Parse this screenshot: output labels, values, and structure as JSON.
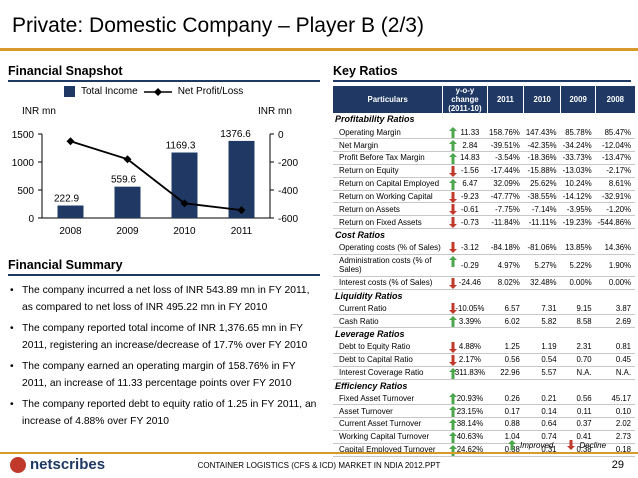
{
  "title": "Private: Domestic Company – Player B (2/3)",
  "financial_snapshot": {
    "heading": "Financial Snapshot",
    "legend": {
      "bar_label": "Total Income",
      "line_label": "Net Profit/Loss"
    },
    "left_unit": "INR mn",
    "right_unit": "INR mn"
  },
  "chart_data": {
    "type": "bar",
    "categories": [
      "2008",
      "2009",
      "2010",
      "2011"
    ],
    "series": [
      {
        "name": "Total Income",
        "values": [
          222.9,
          559.6,
          1169.3,
          1376.6
        ],
        "axis": "left"
      },
      {
        "name": "Net Profit/Loss",
        "values": [
          -52,
          -180,
          -495.22,
          -543.89
        ],
        "axis": "right",
        "type": "line"
      }
    ],
    "left_ticks": [
      "1500",
      "1000",
      "500",
      "0"
    ],
    "right_ticks": [
      "0",
      "-200",
      "-400",
      "-600"
    ],
    "ylim_left": [
      0,
      1500
    ],
    "ylim_right": [
      -600,
      0
    ],
    "data_labels": [
      "222.9",
      "559.6",
      "1169.3",
      "1376.6"
    ]
  },
  "financial_summary": {
    "heading": "Financial Summary",
    "bullets": [
      "The company incurred a net loss of INR 543.89 mn in FY 2011, as compared to net loss of INR 495.22 mn in FY 2010",
      "The company reported total income of INR 1,376.65 mn in FY 2011, registering an increase/decrease of 17.7% over FY 2010",
      "The company earned an operating margin of 158.76% in FY 2011, an increase of 11.33 percentage points over FY 2010",
      "The company reported debt to equity ratio of 1.25 in FY 2011, an increase of 4.88% over FY 2010"
    ]
  },
  "key_ratios": {
    "heading": "Key Ratios",
    "columns": [
      "Particulars",
      "y-o-y change (2011-10)",
      "2011",
      "2010",
      "2009",
      "2008"
    ],
    "groups": [
      {
        "name": "Profitability Ratios",
        "rows": [
          {
            "label": "Operating Margin",
            "yoy": "11.33",
            "dir": "up",
            "v": [
              "158.76%",
              "147.43%",
              "85.78%",
              "85.47%"
            ]
          },
          {
            "label": "Net Margin",
            "yoy": "2.84",
            "dir": "up",
            "v": [
              "-39.51%",
              "-42.35%",
              "-34.24%",
              "-12.04%"
            ]
          },
          {
            "label": "Profit Before Tax Margin",
            "yoy": "14.83",
            "dir": "up",
            "v": [
              "-3.54%",
              "-18.36%",
              "-33.73%",
              "-13.47%"
            ]
          },
          {
            "label": "Return on Equity",
            "yoy": "-1.56",
            "dir": "down",
            "v": [
              "-17.44%",
              "-15.88%",
              "-13.03%",
              "-2.17%"
            ]
          },
          {
            "label": "Return on Capital Employed",
            "yoy": "6.47",
            "dir": "up",
            "v": [
              "32.09%",
              "25.62%",
              "10.24%",
              "8.61%"
            ]
          },
          {
            "label": "Return on Working Capital",
            "yoy": "-9.23",
            "dir": "down",
            "v": [
              "-47.77%",
              "-38.55%",
              "-14.12%",
              "-32.91%"
            ]
          },
          {
            "label": "Return on Assets",
            "yoy": "-0.61",
            "dir": "down",
            "v": [
              "-7.75%",
              "-7.14%",
              "-3.95%",
              "-1.20%"
            ]
          },
          {
            "label": "Return on Fixed Assets",
            "yoy": "-0.73",
            "dir": "down",
            "v": [
              "-11.84%",
              "-11.11%",
              "-19.23%",
              "-544.86%"
            ]
          }
        ]
      },
      {
        "name": "Cost Ratios",
        "rows": [
          {
            "label": "Operating costs (% of Sales)",
            "yoy": "-3.12",
            "dir": "down",
            "v": [
              "-84.18%",
              "-81.06%",
              "13.85%",
              "14.36%"
            ]
          },
          {
            "label": "Administration costs (% of Sales)",
            "yoy": "-0.29",
            "dir": "up",
            "v": [
              "4.97%",
              "5.27%",
              "5.22%",
              "1.90%"
            ],
            "tall": true
          },
          {
            "label": "Interest costs (% of Sales)",
            "yoy": "-24.46",
            "dir": "down",
            "v": [
              "8.02%",
              "32.48%",
              "0.00%",
              "0.00%"
            ]
          }
        ]
      },
      {
        "name": "Liquidity Ratios",
        "rows": [
          {
            "label": "Current Ratio",
            "yoy": "-10.05%",
            "dir": "down",
            "v": [
              "6.57",
              "7.31",
              "9.15",
              "3.87"
            ]
          },
          {
            "label": "Cash Ratio",
            "yoy": "3.39%",
            "dir": "up",
            "v": [
              "6.02",
              "5.82",
              "8.58",
              "2.69"
            ]
          }
        ]
      },
      {
        "name": "Leverage Ratios",
        "rows": [
          {
            "label": "Debt to Equity Ratio",
            "yoy": "4.88%",
            "dir": "down",
            "v": [
              "1.25",
              "1.19",
              "2.31",
              "0.81"
            ]
          },
          {
            "label": "Debt to Capital Ratio",
            "yoy": "2.17%",
            "dir": "down",
            "v": [
              "0.56",
              "0.54",
              "0.70",
              "0.45"
            ]
          },
          {
            "label": "Interest Coverage Ratio",
            "yoy": "311.83%",
            "dir": "up",
            "v": [
              "22.96",
              "5.57",
              "N.A.",
              "N.A."
            ]
          }
        ]
      },
      {
        "name": "Efficiency Ratios",
        "rows": [
          {
            "label": "Fixed Asset Turnover",
            "yoy": "20.93%",
            "dir": "up",
            "v": [
              "0.26",
              "0.21",
              "0.56",
              "45.17"
            ]
          },
          {
            "label": "Asset Turnover",
            "yoy": "23.15%",
            "dir": "up",
            "v": [
              "0.17",
              "0.14",
              "0.11",
              "0.10"
            ]
          },
          {
            "label": "Current Asset Turnover",
            "yoy": "38.14%",
            "dir": "up",
            "v": [
              "0.88",
              "0.64",
              "0.37",
              "2.02"
            ]
          },
          {
            "label": "Working Capital Turnover",
            "yoy": "40.63%",
            "dir": "up",
            "v": [
              "1.04",
              "0.74",
              "0.41",
              "2.73"
            ]
          },
          {
            "label": "Capital Employed Turnover",
            "yoy": "24.62%",
            "dir": "up",
            "v": [
              "0.38",
              "0.31",
              "0.38",
              "0.18"
            ]
          }
        ]
      }
    ],
    "legend": {
      "improved": "Improved",
      "decline": "Decline"
    }
  },
  "colors": {
    "navy": "#1f3864",
    "gold": "#d89b2b",
    "up": "#4ca64c",
    "down": "#c0392b"
  },
  "footer": {
    "logo": "netscribes",
    "text": "CONTAINER LOGISTICS (CFS & ICD) MARKET IN NDIA 2012.PPT",
    "page": "29"
  }
}
